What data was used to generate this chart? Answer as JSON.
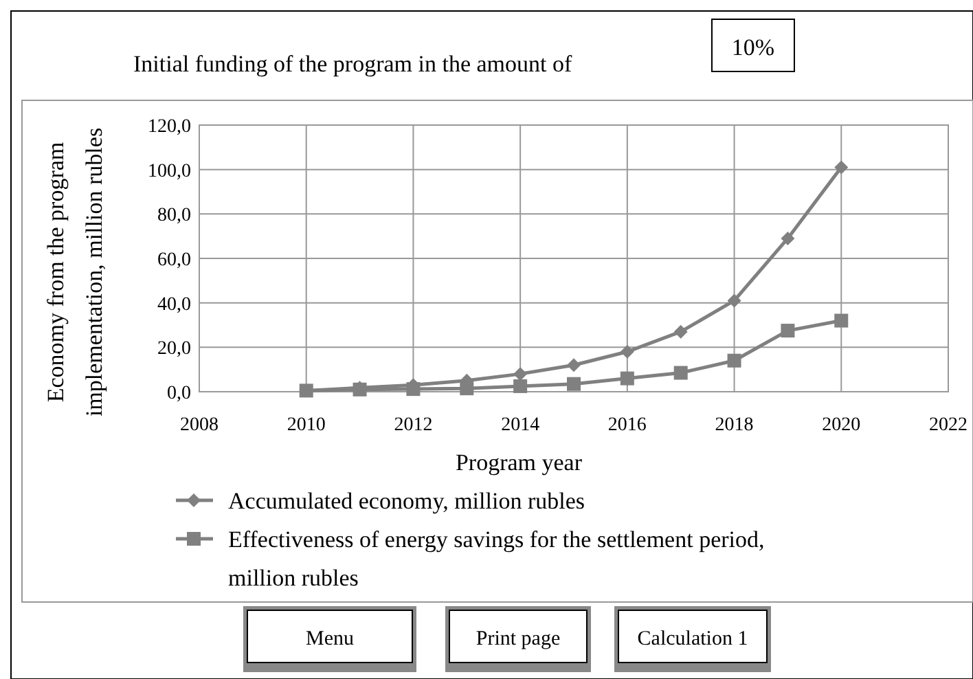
{
  "chart_data": {
    "type": "line",
    "title": "Initial funding of the program in the amount of",
    "xlabel": "Program year",
    "ylabel": "Economy from the program implementation, million rubles",
    "x": [
      2010,
      2011,
      2012,
      2013,
      2014,
      2015,
      2016,
      2017,
      2018,
      2019,
      2020
    ],
    "series": [
      {
        "name": "Accumulated economy, million rubles",
        "color": "#808080",
        "marker": "diamond",
        "values": [
          0.5,
          1.8,
          3,
          5,
          8,
          12,
          18,
          27,
          41,
          69,
          101
        ]
      },
      {
        "name": "Effectiveness of energy savings for the settlement period, million rubles",
        "color": "#808080",
        "marker": "square",
        "values": [
          0.5,
          1,
          1.2,
          1.5,
          2.5,
          3.5,
          6,
          8.5,
          14,
          27.5,
          32
        ]
      }
    ],
    "xlim": [
      2008,
      2022
    ],
    "xticks": [
      2008,
      2010,
      2012,
      2014,
      2016,
      2018,
      2020,
      2022
    ],
    "ylim": [
      0,
      120
    ],
    "yticks": [
      {
        "value": 0,
        "label": "0,0"
      },
      {
        "value": 20,
        "label": "20,0"
      },
      {
        "value": 40,
        "label": "40,0"
      },
      {
        "value": 60,
        "label": "60,0"
      },
      {
        "value": 80,
        "label": "80,0"
      },
      {
        "value": 100,
        "label": "100,0"
      },
      {
        "value": 120,
        "label": "120,0"
      }
    ],
    "grid": true,
    "legend": "bottom",
    "line_style": "solid",
    "annotations": [
      "10%",
      "Menu",
      "Print page",
      "Calculation 1"
    ]
  }
}
